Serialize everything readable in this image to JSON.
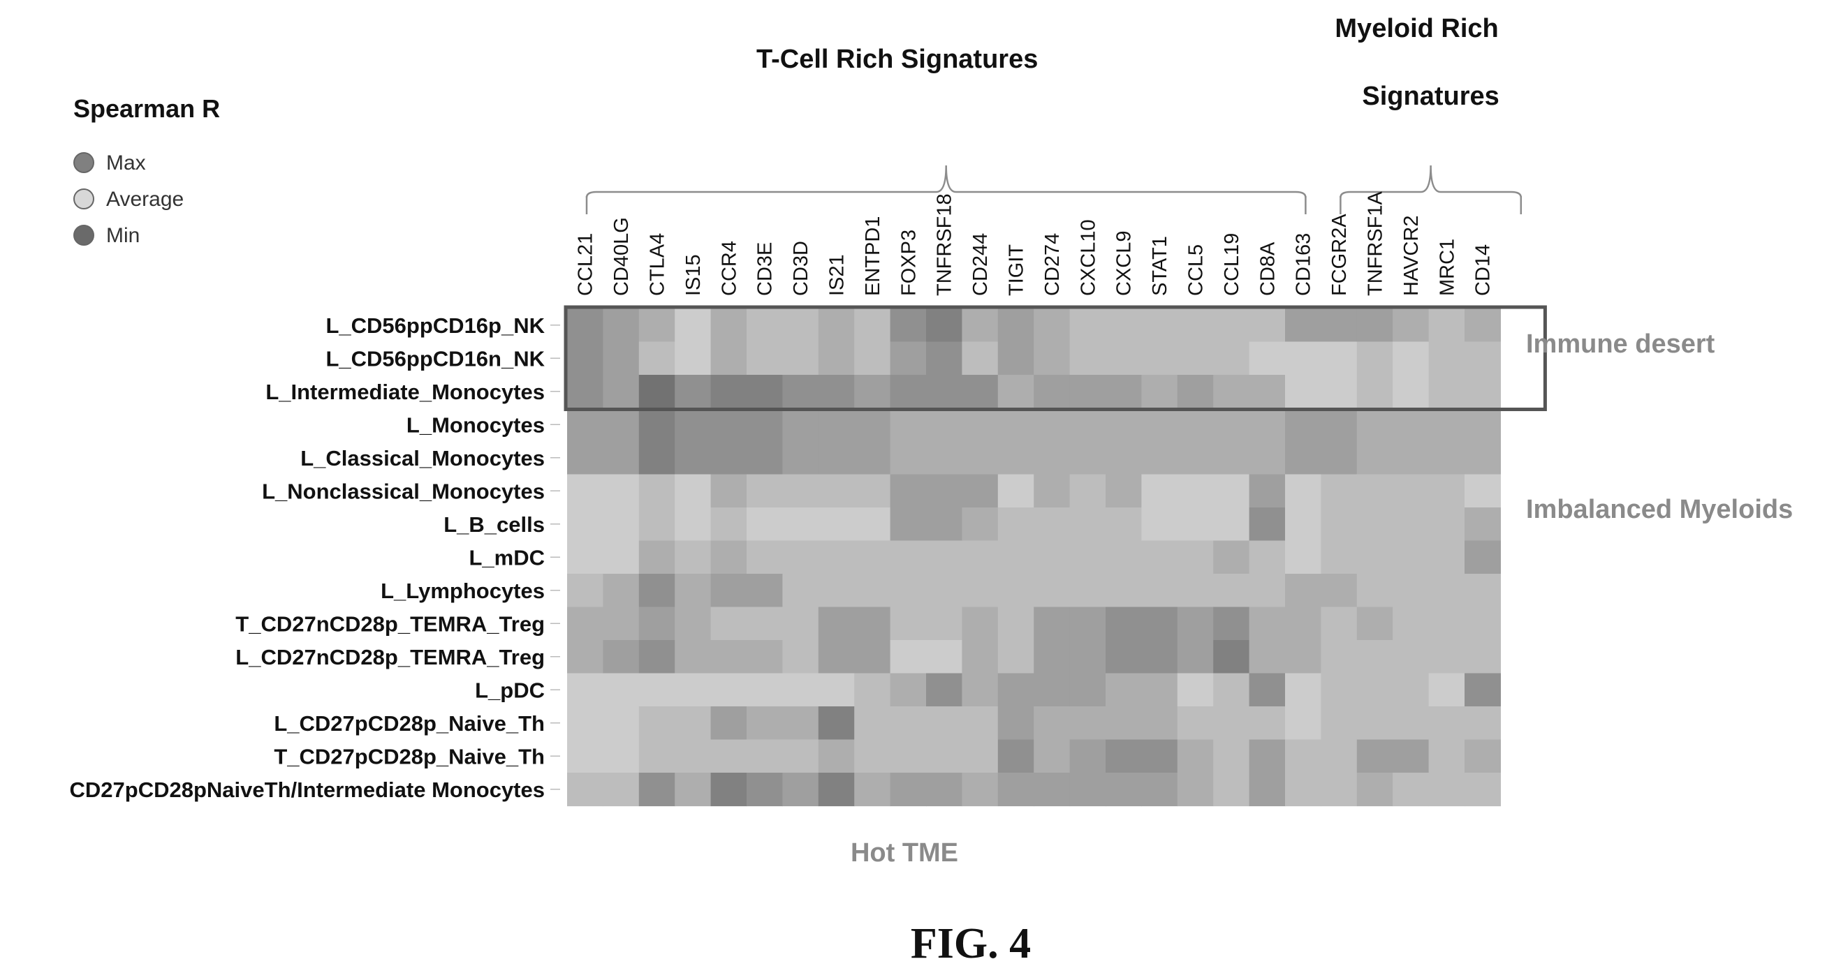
{
  "chart_data": {
    "type": "heatmap",
    "legend": {
      "title": "Spearman R",
      "items": [
        {
          "label": "Max",
          "color": "#808080"
        },
        {
          "label": "Average",
          "color": "#d8d8d8"
        },
        {
          "label": "Min",
          "color": "#6a6a6a"
        }
      ]
    },
    "column_groups": [
      {
        "label": "T-Cell Rich Signatures",
        "start": 0,
        "end": 20
      },
      {
        "label": "Myeloid Rich",
        "label2": "Signatures",
        "start": 21,
        "end": 26
      }
    ],
    "columns": [
      "CCL21",
      "CD40LG",
      "CTLA4",
      "IS15",
      "CCR4",
      "CD3E",
      "CD3D",
      "IS21",
      "ENTPD1",
      "FOXP3",
      "TNFRSF18",
      "CD244",
      "TIGIT",
      "CD274",
      "CXCL10",
      "CXCL9",
      "STAT1",
      "CCL5",
      "CCL19",
      "CD8A",
      "CD163",
      "FCGR2A",
      "TNFRSF1A",
      "HAVCR2",
      "MRC1",
      "CD14"
    ],
    "rows": [
      "L_CD56ppCD16p_NK",
      "L_CD56ppCD16n_NK",
      "L_Intermediate_Monocytes",
      "L_Monocytes",
      "L_Classical_Monocytes",
      "L_Nonclassical_Monocytes",
      "L_B_cells",
      "L_mDC",
      "L_Lymphocytes",
      "T_CD27nCD28p_TEMRA_Treg",
      "L_CD27nCD28p_TEMRA_Treg",
      "L_pDC",
      "L_CD27pCD28p_Naive_Th",
      "T_CD27pCD28p_Naive_Th",
      "CD27pCD28pNaiveTh/Intermediate Monocytes"
    ],
    "values": [
      [
        6,
        5,
        4,
        2,
        4,
        3,
        3,
        4,
        3,
        6,
        7,
        4,
        5,
        4,
        3,
        3,
        3,
        3,
        3,
        3,
        5,
        5,
        5,
        4,
        3,
        4
      ],
      [
        6,
        5,
        3,
        2,
        4,
        3,
        3,
        4,
        3,
        5,
        6,
        3,
        5,
        4,
        3,
        3,
        3,
        3,
        3,
        2,
        2,
        2,
        3,
        2,
        3,
        3
      ],
      [
        6,
        5,
        8,
        6,
        7,
        7,
        6,
        6,
        5,
        6,
        6,
        6,
        4,
        5,
        5,
        5,
        4,
        5,
        4,
        4,
        2,
        2,
        3,
        2,
        3,
        3
      ],
      [
        5,
        5,
        7,
        6,
        6,
        6,
        5,
        5,
        5,
        4,
        4,
        4,
        4,
        4,
        4,
        4,
        4,
        4,
        4,
        4,
        5,
        5,
        4,
        4,
        4,
        4
      ],
      [
        5,
        5,
        7,
        6,
        6,
        6,
        5,
        5,
        5,
        4,
        4,
        4,
        4,
        4,
        4,
        4,
        4,
        4,
        4,
        4,
        5,
        5,
        4,
        4,
        4,
        4
      ],
      [
        2,
        2,
        3,
        2,
        4,
        3,
        3,
        3,
        3,
        5,
        5,
        5,
        2,
        4,
        3,
        4,
        2,
        2,
        2,
        5,
        2,
        3,
        3,
        3,
        3,
        2
      ],
      [
        2,
        2,
        3,
        2,
        3,
        2,
        2,
        2,
        2,
        5,
        5,
        4,
        3,
        3,
        3,
        3,
        2,
        2,
        2,
        6,
        2,
        3,
        3,
        3,
        3,
        4
      ],
      [
        2,
        2,
        4,
        3,
        4,
        3,
        3,
        3,
        3,
        3,
        3,
        3,
        3,
        3,
        3,
        3,
        3,
        3,
        4,
        3,
        2,
        3,
        3,
        3,
        3,
        5
      ],
      [
        3,
        4,
        6,
        4,
        5,
        5,
        3,
        3,
        3,
        3,
        3,
        3,
        3,
        3,
        3,
        3,
        3,
        3,
        3,
        3,
        4,
        4,
        3,
        3,
        3,
        3
      ],
      [
        4,
        4,
        5,
        4,
        3,
        3,
        3,
        5,
        5,
        3,
        3,
        4,
        3,
        5,
        5,
        6,
        6,
        5,
        6,
        4,
        4,
        3,
        4,
        3,
        3,
        3
      ],
      [
        4,
        5,
        6,
        4,
        4,
        4,
        3,
        5,
        5,
        2,
        2,
        4,
        3,
        5,
        5,
        6,
        6,
        5,
        7,
        4,
        4,
        3,
        3,
        3,
        3,
        3
      ],
      [
        2,
        2,
        2,
        2,
        2,
        2,
        2,
        2,
        3,
        4,
        6,
        4,
        5,
        5,
        5,
        4,
        4,
        2,
        3,
        6,
        2,
        3,
        3,
        3,
        2,
        6
      ],
      [
        2,
        2,
        3,
        3,
        5,
        4,
        4,
        7,
        3,
        3,
        3,
        3,
        5,
        4,
        4,
        4,
        4,
        3,
        3,
        3,
        2,
        3,
        3,
        3,
        3,
        3
      ],
      [
        2,
        2,
        3,
        3,
        3,
        3,
        3,
        4,
        3,
        3,
        3,
        3,
        6,
        4,
        5,
        6,
        6,
        4,
        3,
        5,
        3,
        3,
        5,
        5,
        3,
        4
      ],
      [
        3,
        3,
        6,
        4,
        7,
        6,
        5,
        7,
        4,
        5,
        5,
        4,
        5,
        5,
        5,
        5,
        5,
        4,
        3,
        5,
        3,
        3,
        4,
        3,
        3,
        3
      ]
    ],
    "value_scale": "relative shade 0 (light) to 9 (dark)",
    "highlight_rows": [
      0,
      2
    ],
    "annotations": [
      "Immune desert",
      "Imbalanced Myeloids",
      "Hot TME"
    ],
    "figure_label": "FIG. 4"
  }
}
